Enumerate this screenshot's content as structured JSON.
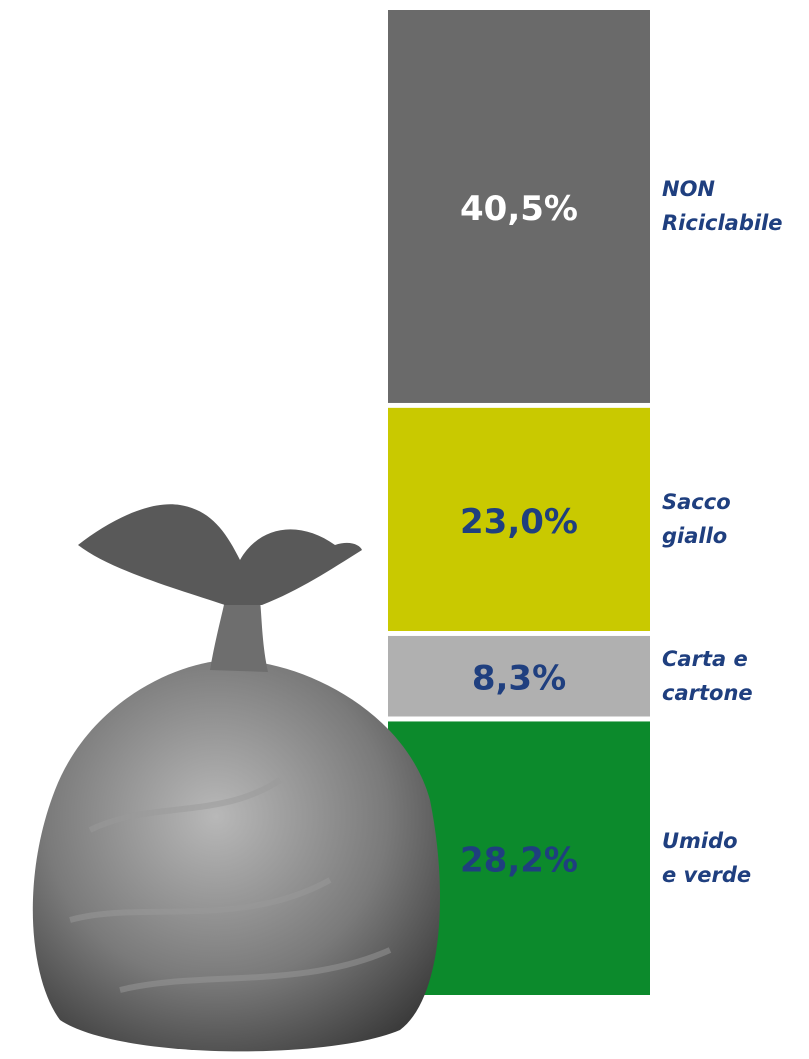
{
  "chart_data": {
    "type": "stacked-bar",
    "series": [
      {
        "name": "Umido\ne verde",
        "color": "#0c8a2c",
        "label_color": "#1f3f7f",
        "values": [
          28.2
        ],
        "value_labels": [
          "28,2%"
        ]
      },
      {
        "name": "Carta e\ncartone",
        "color": "#b0b0b0",
        "label_color": "#1f3f7f",
        "values": [
          8.3
        ],
        "value_labels": [
          "8,3%"
        ]
      },
      {
        "name": "Sacco\ngiallo",
        "color": "#c9c900",
        "label_color": "#1f3f7f",
        "values": [
          23.0
        ],
        "value_labels": [
          "23,0%"
        ]
      },
      {
        "name": "NON\nRiciclabile",
        "color": "#6a6a6a",
        "label_color": "#ffffff",
        "values": [
          40.5
        ],
        "value_labels": [
          "40,5%"
        ]
      }
    ]
  }
}
